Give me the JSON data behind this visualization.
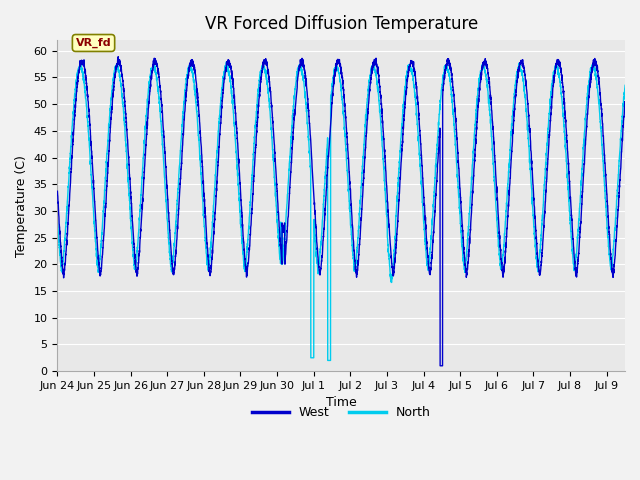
{
  "title": "VR Forced Diffusion Temperature",
  "xlabel": "Time",
  "ylabel": "Temperature (C)",
  "west_color": "#0000CC",
  "north_color": "#00CCEE",
  "plot_bg_color": "#E8E8E8",
  "fig_bg_color": "#F2F2F2",
  "annotation_text": "VR_fd",
  "annotation_bg": "#FFFFC0",
  "annotation_fg": "#8B0000",
  "legend_west": "West",
  "legend_north": "North",
  "title_fontsize": 12,
  "axis_label_fontsize": 9,
  "tick_fontsize": 8,
  "xtick_labels": [
    "Jun 24",
    "Jun 25",
    "Jun 26",
    "Jun 27",
    "Jun 28",
    "Jun 29",
    "Jun 30",
    "Jul 1",
    "Jul 2",
    "Jul 3",
    "Jul 4",
    "Jul 5",
    "Jul 6",
    "Jul 7",
    "Jul 8",
    "Jul 9"
  ],
  "yticks": [
    0,
    5,
    10,
    15,
    20,
    25,
    30,
    35,
    40,
    45,
    50,
    55,
    60
  ],
  "grid_color": "#FFFFFF",
  "ylim": [
    0,
    62
  ]
}
